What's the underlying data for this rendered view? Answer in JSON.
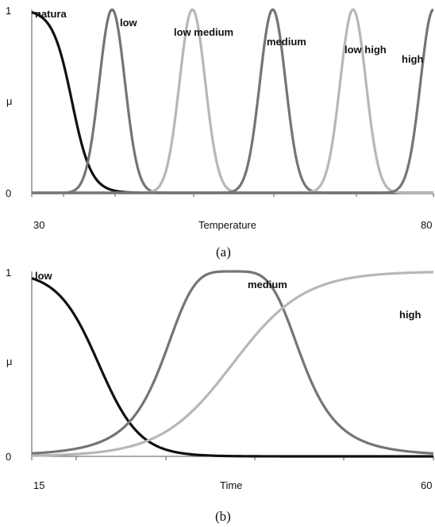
{
  "colors": {
    "black": "#111111",
    "dark_gray": "#757575",
    "light_gray": "#b7b7b7",
    "axis": "#555555"
  },
  "chart_data": [
    {
      "type": "line",
      "caption": "(a)",
      "xlabel": "Temperature",
      "ylabel": "μ",
      "xlim": [
        30,
        80
      ],
      "ylim": [
        0,
        1
      ],
      "x_tick_labels": [
        "30",
        "80"
      ],
      "y_tick_labels": [
        "0",
        "1"
      ],
      "grid": false,
      "series": [
        {
          "name": "natura",
          "shape": "z",
          "center": 35,
          "spread": 1.2,
          "color": "#111111"
        },
        {
          "name": "low",
          "shape": "bell",
          "center": 40,
          "spread": 1.6,
          "color": "#757575"
        },
        {
          "name": "low medium",
          "shape": "bell",
          "center": 50,
          "spread": 1.6,
          "color": "#b7b7b7"
        },
        {
          "name": "medium",
          "shape": "bell",
          "center": 60,
          "spread": 1.6,
          "color": "#757575"
        },
        {
          "name": "low high",
          "shape": "bell",
          "center": 70,
          "spread": 1.6,
          "color": "#b7b7b7"
        },
        {
          "name": "high",
          "shape": "bell",
          "center": 80,
          "spread": 1.6,
          "color": "#757575"
        }
      ]
    },
    {
      "type": "line",
      "caption": "(b)",
      "xlabel": "Time",
      "ylabel": "μ",
      "xlim": [
        15,
        60
      ],
      "ylim": [
        0,
        1
      ],
      "x_tick_labels": [
        "15",
        "60"
      ],
      "y_tick_labels": [
        "0",
        "1"
      ],
      "grid": false,
      "series": [
        {
          "name": "low",
          "shape": "z",
          "center": 22.5,
          "spread": 2.3,
          "color": "#111111"
        },
        {
          "name": "medium",
          "shape": "gbell",
          "center": 37.5,
          "width": 8,
          "slope": 2,
          "color": "#757575"
        },
        {
          "name": "high",
          "shape": "s",
          "center": 37.5,
          "spread": 4,
          "color": "#b7b7b7"
        }
      ]
    }
  ]
}
